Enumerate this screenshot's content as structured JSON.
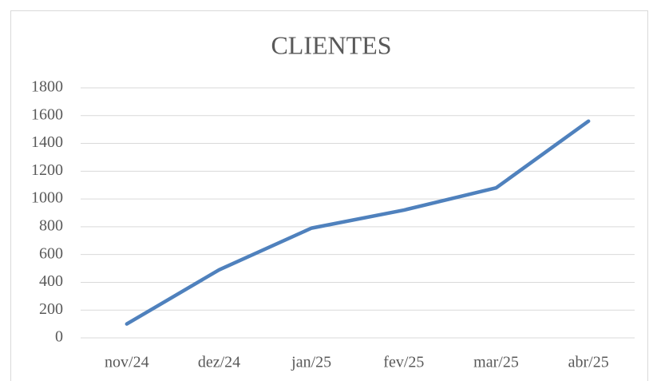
{
  "chart_data": {
    "type": "line",
    "title": "CLIENTES",
    "categories": [
      "nov/24",
      "dez/24",
      "jan/25",
      "fev/25",
      "mar/25",
      "abr/25"
    ],
    "series": [
      {
        "name": "CLIENTES",
        "color": "#4f81bd",
        "values": [
          100,
          490,
          790,
          920,
          1080,
          1560
        ]
      }
    ],
    "ylim": [
      0,
      1800
    ],
    "yticks": [
      0,
      200,
      400,
      600,
      800,
      1000,
      1200,
      1400,
      1600,
      1800
    ],
    "grid": true
  }
}
